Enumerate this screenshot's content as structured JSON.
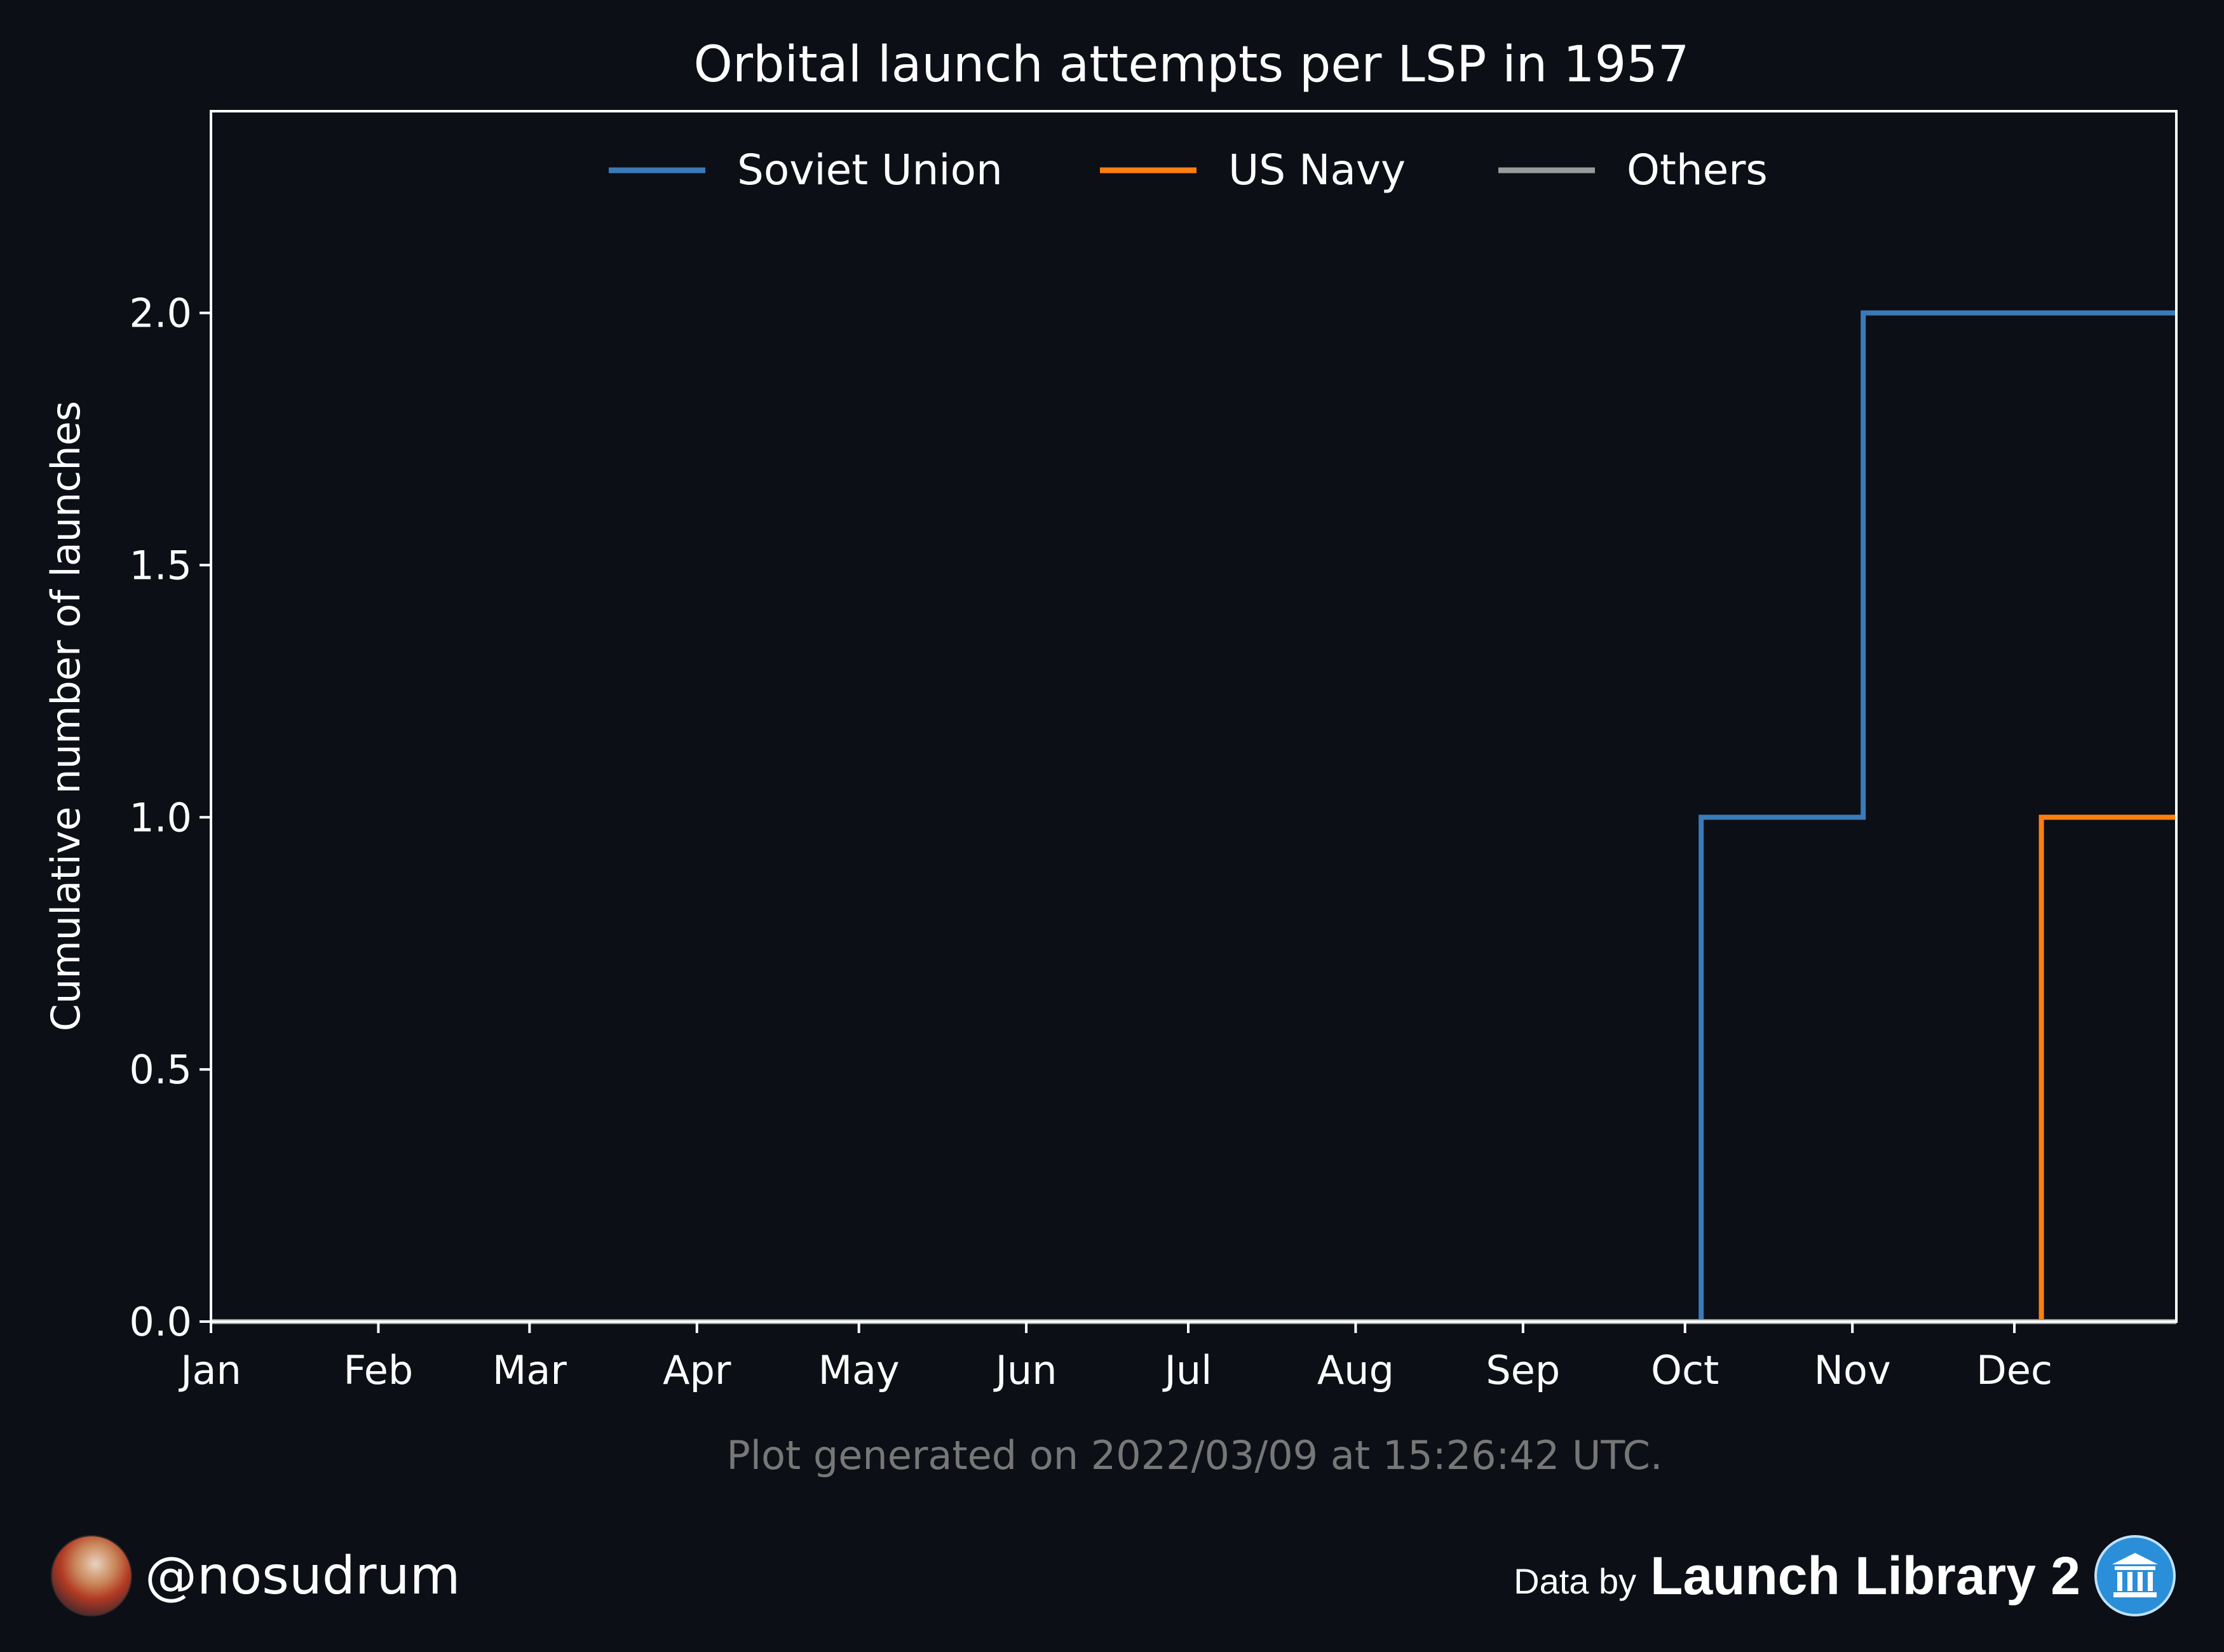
{
  "chart_data": {
    "type": "line",
    "step": "post",
    "title": "Orbital launch attempts per LSP in 1957",
    "xlabel": "",
    "ylabel": "Cumulative number of launches",
    "xlim": [
      "1957-01-01",
      "1957-12-31"
    ],
    "ylim": [
      0,
      2.4
    ],
    "yticks": [
      0.0,
      0.5,
      1.0,
      1.5,
      2.0
    ],
    "ytick_labels": [
      "0.0",
      "0.5",
      "1.0",
      "1.5",
      "2.0"
    ],
    "xticks": [
      "1957-01-01",
      "1957-02-01",
      "1957-03-01",
      "1957-04-01",
      "1957-05-01",
      "1957-06-01",
      "1957-07-01",
      "1957-08-01",
      "1957-09-01",
      "1957-10-01",
      "1957-11-01",
      "1957-12-01"
    ],
    "xtick_labels": [
      "Jan",
      "Feb",
      "Mar",
      "Apr",
      "May",
      "Jun",
      "Jul",
      "Aug",
      "Sep",
      "Oct",
      "Nov",
      "Dec"
    ],
    "grid": false,
    "legend": "top-center",
    "series": [
      {
        "name": "Soviet Union",
        "color": "#3a7ab8",
        "x": [
          "1957-01-01",
          "1957-10-04",
          "1957-11-03",
          "1957-12-31"
        ],
        "y": [
          0,
          1,
          2,
          2
        ]
      },
      {
        "name": "US Navy",
        "color": "#ff7f0e",
        "x": [
          "1957-01-01",
          "1957-12-06",
          "1957-12-31"
        ],
        "y": [
          0,
          1,
          1
        ]
      },
      {
        "name": "Others",
        "color": "#9a9a9a",
        "x": [
          "1957-01-01",
          "1957-12-31"
        ],
        "y": [
          0,
          0
        ]
      }
    ]
  },
  "footnote": "Plot generated on 2022/03/09 at 15:26:42 UTC.",
  "footer": {
    "handle": "@nosudrum",
    "data_by": "Data by",
    "brand": "Launch Library 2"
  },
  "colors": {
    "background": "#0c0f16",
    "axes": "#ffffff",
    "footnote": "#777777",
    "brand_icon": "#2a8fd8"
  }
}
